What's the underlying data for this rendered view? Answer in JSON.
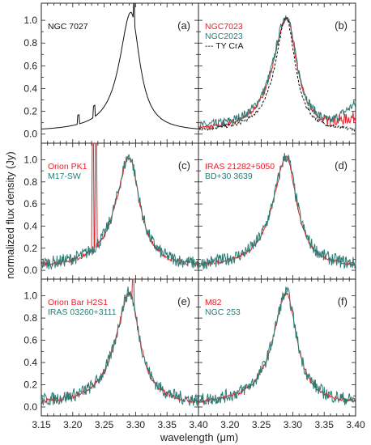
{
  "chart_data": {
    "type": "line",
    "xlabel": "wavelength (μm)",
    "ylabel": "normalized flux density (Jy)",
    "xlim": [
      3.15,
      3.4
    ],
    "ylim": [
      -0.08,
      1.15
    ],
    "xticks": [
      "3.15",
      "3.20",
      "3.25",
      "3.30",
      "3.35",
      "3.40"
    ],
    "yticks": [
      "0.0",
      "0.2",
      "0.4",
      "0.6",
      "0.8",
      "1.0"
    ],
    "colors": {
      "red": "#e8202a",
      "teal": "#2e7a73",
      "black": "#111111"
    },
    "panels": [
      {
        "label": "(a)",
        "series": [
          {
            "name": "NGC 7027",
            "color": "black",
            "style": "solid",
            "profile": "broad_lines"
          }
        ]
      },
      {
        "label": "(b)",
        "series": [
          {
            "name": "NGC7023",
            "color": "red",
            "style": "solid",
            "profile": "red_tail"
          },
          {
            "name": "NGC2023",
            "color": "teal",
            "style": "solid",
            "profile": "noisy_tail"
          },
          {
            "name": "TY CrA",
            "color": "black",
            "style": "dashed",
            "profile": "narrow"
          }
        ]
      },
      {
        "label": "(c)",
        "series": [
          {
            "name": "Orion PK1",
            "color": "red",
            "style": "solid",
            "profile": "spikes"
          },
          {
            "name": "M17-SW",
            "color": "teal",
            "style": "solid",
            "profile": "noisy"
          }
        ]
      },
      {
        "label": "(d)",
        "series": [
          {
            "name": "IRAS 21282+5050",
            "color": "red",
            "style": "solid",
            "profile": "smooth"
          },
          {
            "name": "BD+30 3639",
            "color": "teal",
            "style": "solid",
            "profile": "noisy"
          }
        ]
      },
      {
        "label": "(e)",
        "series": [
          {
            "name": "Orion Bar H2S1",
            "color": "red",
            "style": "solid",
            "profile": "spike_peak"
          },
          {
            "name": "IRAS 03260+3111",
            "color": "teal",
            "style": "solid",
            "profile": "noisy"
          }
        ]
      },
      {
        "label": "(f)",
        "series": [
          {
            "name": "M82",
            "color": "red",
            "style": "solid",
            "profile": "smooth"
          },
          {
            "name": "NGC 253",
            "color": "teal",
            "style": "solid",
            "profile": "noisy"
          }
        ]
      }
    ],
    "feature_center": 3.29,
    "grid": false
  }
}
